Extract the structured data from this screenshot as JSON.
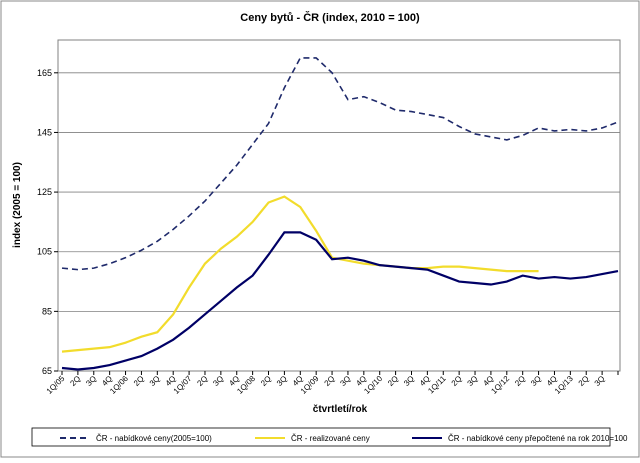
{
  "chart_data": {
    "type": "line",
    "title": "Ceny bytů  - ČR (index, 2010 = 100)",
    "ylabel": "index (2005 = 100)",
    "xlabel": "čtvrtletí/rok",
    "categories": [
      "1Q/05",
      "2Q",
      "3Q",
      "4Q",
      "1Q/06",
      "2Q",
      "3Q",
      "4Q",
      "1Q/07",
      "2Q",
      "3Q",
      "4Q",
      "1Q/08",
      "2Q",
      "3Q",
      "4Q",
      "1Q/09",
      "2Q",
      "3Q",
      "4Q",
      "1Q/10",
      "2Q",
      "3Q",
      "4Q",
      "1Q/11",
      "2Q",
      "3Q",
      "4Q",
      "1Q/12",
      "2Q",
      "3Q",
      "4Q",
      "1Q/13",
      "2Q",
      "3Q",
      null
    ],
    "series": [
      {
        "name": "ČR - nabídkové ceny(2005=100)",
        "color": "#1f2a6b",
        "style": "dashed",
        "values": [
          99.5,
          99,
          99.5,
          101,
          103,
          105.5,
          108.5,
          112.5,
          117,
          122,
          128,
          134,
          141,
          148,
          160,
          170,
          170,
          165,
          156,
          157,
          155,
          152.5,
          152,
          151,
          150,
          147,
          144.5,
          143.5,
          142.5,
          144,
          146.5,
          145.5,
          146,
          145.5,
          146.5,
          148.5
        ]
      },
      {
        "name": "ČR - realizované ceny",
        "color": "#f2dc2c",
        "style": "solid",
        "values": [
          71.5,
          72,
          72.5,
          73,
          74.5,
          76.5,
          78,
          84,
          93,
          101,
          106,
          110,
          115,
          121.5,
          123.5,
          120,
          112,
          103,
          102,
          101,
          100.5,
          100,
          99.5,
          99.5,
          100,
          100,
          99.5,
          99,
          98.5,
          98.5,
          98.5,
          null,
          null,
          null,
          null,
          null
        ]
      },
      {
        "name": "ČR - nabídkové ceny přepočtené na rok 2010=100",
        "color": "#000066",
        "style": "solid",
        "values": [
          66,
          65.5,
          66,
          67,
          68.5,
          70,
          72.5,
          75.5,
          79.5,
          84,
          88.5,
          93,
          97,
          104,
          111.5,
          111.5,
          109,
          102.5,
          103,
          102,
          100.5,
          100,
          99.5,
          99,
          97,
          95,
          94.5,
          94,
          95,
          97,
          96,
          96.5,
          96,
          96.5,
          97.5,
          98.5
        ]
      }
    ],
    "ylim": [
      65,
      176
    ],
    "yticks": [
      65,
      85,
      105,
      125,
      145,
      165
    ],
    "grid": true,
    "legend": "bottom"
  }
}
